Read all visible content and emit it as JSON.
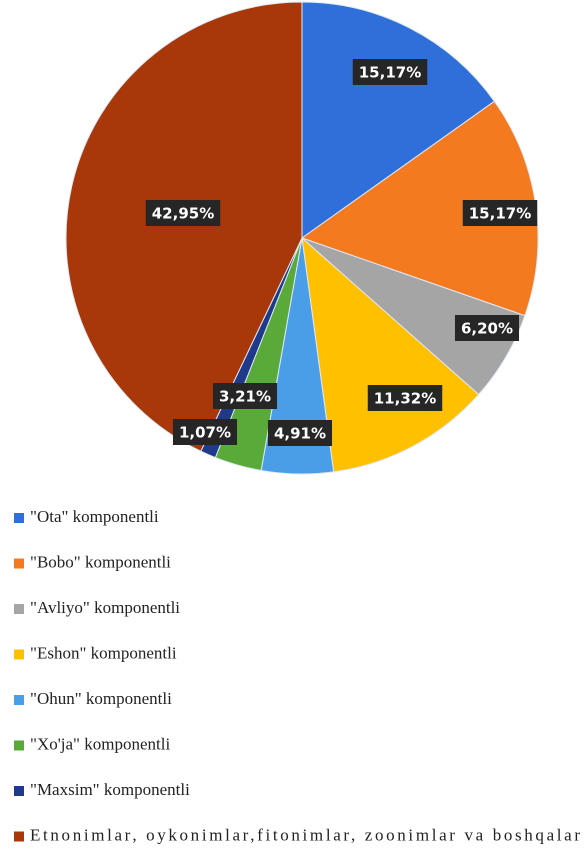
{
  "chart_data": {
    "type": "pie",
    "categories": [
      "\"Ota\" komponentli",
      "\"Bobo\" komponentli",
      "\"Avliyo\" komponentli",
      "\"Eshon\" komponentli",
      "\"Ohun\" komponentli",
      "\"Xo'ja\" komponentli",
      "\"Maxsim\" komponentli",
      "Etnonimlar, oykonimlar,fitonimlar, zoonimlar va boshqalar"
    ],
    "values": [
      15.17,
      15.17,
      6.2,
      11.32,
      4.91,
      3.21,
      1.07,
      42.95
    ],
    "value_labels": [
      "15,17%",
      "15,17%",
      "6,20%",
      "11,32%",
      "4,91%",
      "3,21%",
      "1,07%",
      "42,95%"
    ],
    "colors": [
      "#2e6fd9",
      "#f47a20",
      "#a5a5a5",
      "#ffc000",
      "#4a9ee8",
      "#5aaa3a",
      "#1f3a8a",
      "#a8370a"
    ],
    "legend": "bottom"
  }
}
